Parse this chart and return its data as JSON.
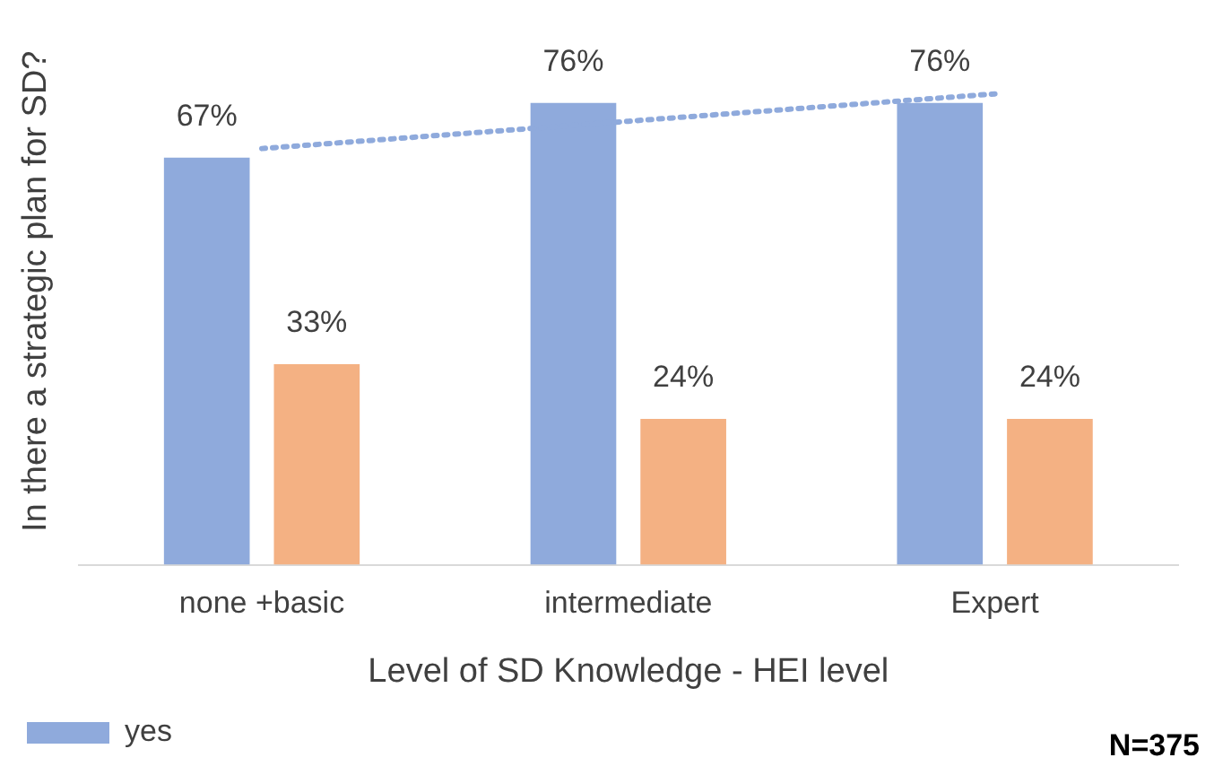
{
  "chart_data": {
    "type": "bar",
    "ylabel": "In there a strategic plan for SD?",
    "xlabel": "Level of SD Knowledge - HEI level",
    "categories": [
      "none +basic",
      "intermediate",
      "Expert"
    ],
    "series": [
      {
        "name": "yes",
        "color": "#8faadc",
        "values": [
          67,
          76,
          76
        ],
        "value_labels": [
          "67%",
          "76%",
          "76%"
        ]
      },
      {
        "color": "#f4b183",
        "values": [
          33,
          24,
          24
        ],
        "value_labels": [
          "33%",
          "24%",
          "24%"
        ]
      },
      {
        "type": "line",
        "color": "#8faadc",
        "line_style": "dotted",
        "marker": "none",
        "values": [
          68.5,
          73,
          77.5
        ]
      }
    ],
    "legend": "bottom left",
    "grid": false,
    "tick_labels": "x",
    "annotations": [
      "N=375"
    ]
  }
}
